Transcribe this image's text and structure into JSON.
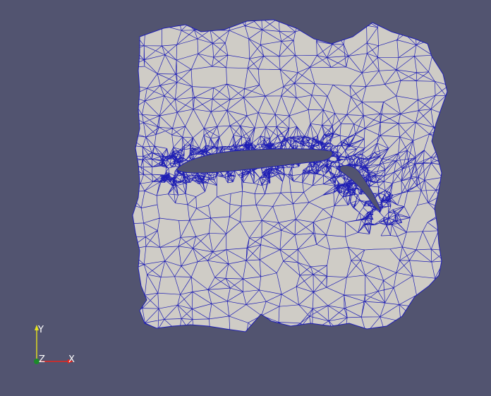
{
  "viewport": {
    "background": "#525470",
    "mesh": {
      "fill_color": "#cfccc6",
      "edge_color": "#1e1eb4",
      "refinement_regions": [
        "main-airfoil",
        "flap"
      ]
    }
  },
  "orientation_axes": {
    "x_label": "X",
    "y_label": "Y",
    "z_label": "Z",
    "x_color": "#e8241c",
    "y_color": "#e7e41c",
    "z_color": "#1c8a2a"
  }
}
